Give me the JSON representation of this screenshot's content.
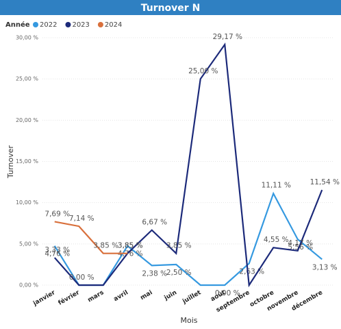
{
  "chart_data": {
    "type": "line",
    "title": "Turnover N",
    "legend_title": "Année",
    "x_label": "Mois",
    "y_label": "Turnover",
    "categories": [
      "janvier",
      "février",
      "mars",
      "avril",
      "mai",
      "juin",
      "juillet",
      "août",
      "septembre",
      "octobre",
      "novembre",
      "décembre"
    ],
    "series": [
      {
        "name": "2022",
        "color": "#3599e0",
        "values": [
          4.76,
          0,
          0,
          4.76,
          2.38,
          2.5,
          0,
          0,
          2.63,
          11.11,
          5.56,
          3.13
        ],
        "value_labels": [
          "4,76 %",
          null,
          null,
          "4,76 %",
          "2,38 %",
          "2,50 %",
          null,
          "0,00 %",
          "2,63 %",
          "11,11 %",
          "5,56 %",
          "3,13 %"
        ]
      },
      {
        "name": "2023",
        "color": "#1c2a7a",
        "values": [
          3.33,
          0,
          0,
          3.85,
          6.67,
          3.85,
          25,
          29.17,
          0,
          4.55,
          4.17,
          11.54
        ],
        "value_labels": [
          "3,33 %",
          "0,00 %",
          null,
          "3,85 %",
          "6,67 %",
          "3,85 %",
          "25,00 %",
          "29,17 %",
          null,
          "4,55 %",
          "4,17 %",
          "11,54 %"
        ]
      },
      {
        "name": "2024",
        "color": "#d9703c",
        "values": [
          7.69,
          7.14,
          3.85,
          3.85,
          null,
          null,
          null,
          null,
          null,
          null,
          null,
          null
        ],
        "value_labels": [
          "7,69 %",
          "7,14 %",
          "3,85 %",
          "3,85 %",
          null,
          null,
          null,
          null,
          null,
          null,
          null,
          null
        ]
      }
    ],
    "ylim": [
      0,
      30
    ],
    "yticks": [
      {
        "value": 0,
        "label": "0,00 %"
      },
      {
        "value": 5,
        "label": "5,00 %"
      },
      {
        "value": 10,
        "label": "10,00 %"
      },
      {
        "value": 15,
        "label": "15,00 %"
      },
      {
        "value": 20,
        "label": "20,00 %"
      },
      {
        "value": 25,
        "label": "25,00 %"
      },
      {
        "value": 30,
        "label": "30,00 %"
      }
    ],
    "grid": true
  }
}
